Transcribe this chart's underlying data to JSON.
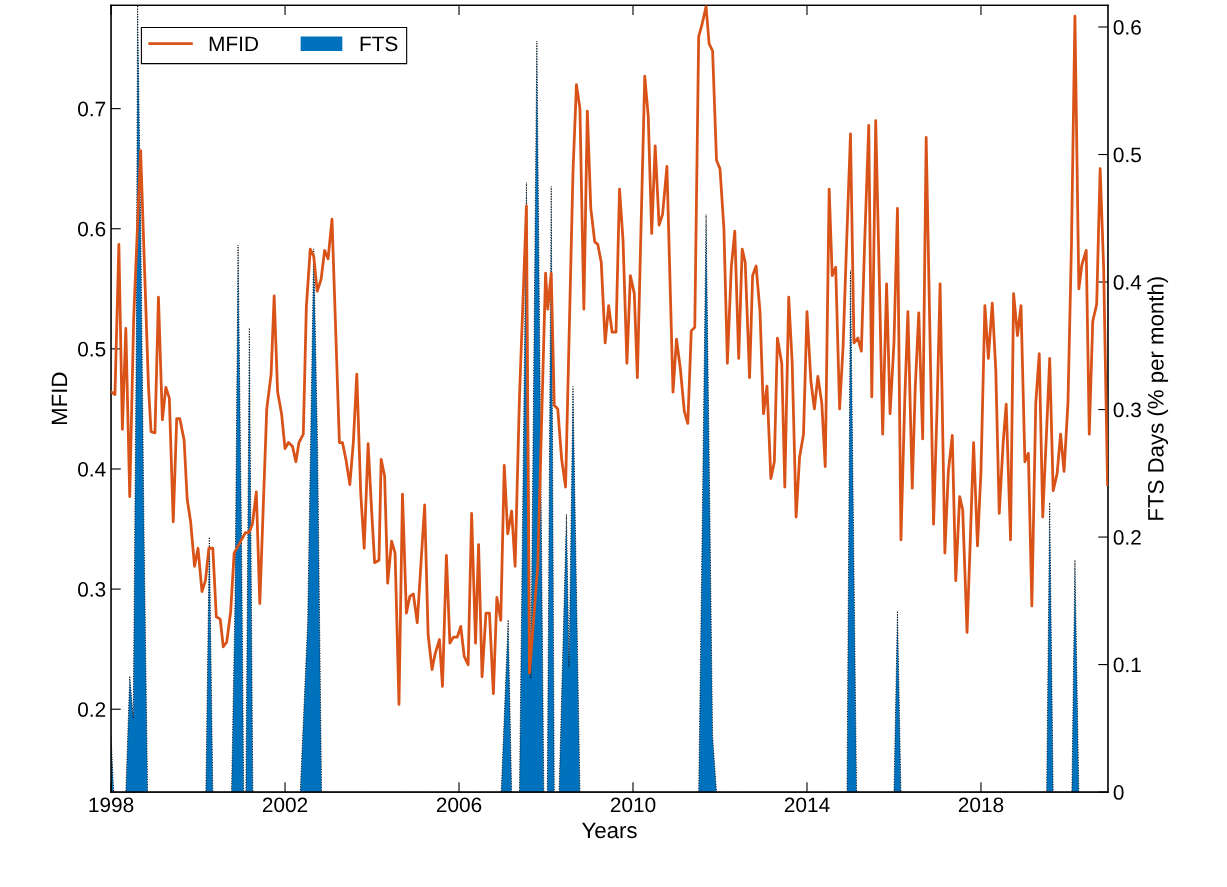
{
  "chart_data": {
    "type": "line",
    "xlabel": "Years",
    "ylabel": "MFID",
    "y2label": "FTS Days (% per month)",
    "xlim": [
      1998,
      2020.92
    ],
    "xticks": [
      1998,
      2002,
      2006,
      2010,
      2014,
      2018
    ],
    "ylim": [
      0.131,
      0.786
    ],
    "yticks": [
      0.2,
      0.3,
      0.4,
      0.5,
      0.6,
      0.7
    ],
    "y2lim": [
      0,
      0.617
    ],
    "y2ticks": [
      0,
      0.1,
      0.2,
      0.3,
      0.4,
      0.5,
      0.6
    ],
    "legend": "top left",
    "grid": false,
    "series": [
      {
        "name": "MFID",
        "axis": "y",
        "color": "#d95319",
        "x": [
          1998.01,
          1998.09,
          1998.18,
          1998.26,
          1998.34,
          1998.43,
          1998.52,
          1998.68,
          1998.86,
          1998.92,
          1999.01,
          1999.09,
          1999.18,
          1999.26,
          1999.34,
          1999.43,
          1999.51,
          1999.58,
          1999.68,
          1999.75,
          1999.83,
          1999.92,
          2000.0,
          2000.09,
          2000.17,
          2000.25,
          2000.34,
          2000.42,
          2000.51,
          2000.58,
          2000.66,
          2000.75,
          2000.83,
          2001.09,
          2001.17,
          2001.25,
          2001.34,
          2001.42,
          2001.58,
          2001.68,
          2001.75,
          2001.83,
          2001.92,
          2002.0,
          2002.08,
          2002.17,
          2002.25,
          2002.32,
          2002.42,
          2002.49,
          2002.58,
          2002.66,
          2002.74,
          2002.83,
          2002.91,
          2002.99,
          2003.08,
          2003.25,
          2003.32,
          2003.4,
          2003.49,
          2003.57,
          2003.65,
          2003.74,
          2003.82,
          2003.91,
          2003.99,
          2004.06,
          2004.16,
          2004.21,
          2004.29,
          2004.36,
          2004.45,
          2004.53,
          2004.62,
          2004.7,
          2004.79,
          2004.87,
          2004.95,
          2005.04,
          2005.21,
          2005.29,
          2005.38,
          2005.45,
          2005.55,
          2005.62,
          2005.71,
          2005.79,
          2005.87,
          2005.96,
          2006.04,
          2006.12,
          2006.21,
          2006.29,
          2006.38,
          2006.45,
          2006.53,
          2006.62,
          2006.7,
          2006.79,
          2006.87,
          2006.96,
          2007.04,
          2007.12,
          2007.21,
          2007.29,
          2007.39,
          2007.55,
          2007.62,
          2007.81,
          2007.99,
          2008.04,
          2008.12,
          2008.19,
          2008.27,
          2008.36,
          2008.45,
          2008.62,
          2008.7,
          2008.78,
          2008.87,
          2008.95,
          2009.03,
          2009.12,
          2009.19,
          2009.27,
          2009.36,
          2009.44,
          2009.52,
          2009.61,
          2009.69,
          2009.77,
          2009.86,
          2009.94,
          2010.03,
          2010.1,
          2010.27,
          2010.35,
          2010.43,
          2010.51,
          2010.6,
          2010.68,
          2010.78,
          2010.92,
          2011.0,
          2011.09,
          2011.18,
          2011.26,
          2011.34,
          2011.42,
          2011.51,
          2011.58,
          2011.68,
          2011.75,
          2011.83,
          2011.92,
          2012.0,
          2012.09,
          2012.17,
          2012.26,
          2012.34,
          2012.43,
          2012.51,
          2012.58,
          2012.68,
          2012.75,
          2012.83,
          2012.92,
          2013.0,
          2013.08,
          2013.17,
          2013.25,
          2013.32,
          2013.42,
          2013.49,
          2013.58,
          2013.66,
          2013.75,
          2013.83,
          2013.92,
          2014.0,
          2014.09,
          2014.17,
          2014.25,
          2014.34,
          2014.42,
          2014.51,
          2014.58,
          2014.66,
          2014.75,
          2014.83,
          2014.91,
          2015.0,
          2015.08,
          2015.17,
          2015.25,
          2015.32,
          2015.42,
          2015.49,
          2015.58,
          2015.66,
          2015.74,
          2015.83,
          2015.91,
          2016.0,
          2016.08,
          2016.16,
          2016.25,
          2016.32,
          2016.42,
          2016.49,
          2016.57,
          2016.66,
          2016.74,
          2016.91,
          2016.99,
          2017.06,
          2017.17,
          2017.25,
          2017.34,
          2017.42,
          2017.51,
          2017.58,
          2017.68,
          2017.75,
          2017.83,
          2017.92,
          2018.0,
          2018.09,
          2018.17,
          2018.26,
          2018.34,
          2018.42,
          2018.51,
          2018.58,
          2018.68,
          2018.75,
          2018.84,
          2018.92,
          2019.01,
          2019.09,
          2019.17,
          2019.26,
          2019.34,
          2019.42,
          2019.51,
          2019.58,
          2019.66,
          2019.75,
          2019.83,
          2019.91,
          2020.0,
          2020.08,
          2020.16,
          2020.25,
          2020.32,
          2020.42,
          2020.49,
          2020.57,
          2020.66,
          2020.74,
          2020.82,
          2020.91
        ],
        "values": [
          0.464,
          0.462,
          0.587,
          0.433,
          0.517,
          0.377,
          0.525,
          0.665,
          0.469,
          0.431,
          0.43,
          0.543,
          0.441,
          0.468,
          0.459,
          0.356,
          0.442,
          0.442,
          0.424,
          0.375,
          0.356,
          0.319,
          0.334,
          0.298,
          0.307,
          0.334,
          0.334,
          0.277,
          0.275,
          0.252,
          0.256,
          0.281,
          0.33,
          0.347,
          0.347,
          0.354,
          0.381,
          0.288,
          0.45,
          0.479,
          0.544,
          0.464,
          0.446,
          0.417,
          0.422,
          0.419,
          0.406,
          0.422,
          0.429,
          0.535,
          0.583,
          0.577,
          0.548,
          0.558,
          0.582,
          0.575,
          0.608,
          0.422,
          0.422,
          0.408,
          0.387,
          0.422,
          0.479,
          0.38,
          0.334,
          0.421,
          0.366,
          0.322,
          0.324,
          0.408,
          0.394,
          0.305,
          0.34,
          0.33,
          0.204,
          0.379,
          0.28,
          0.294,
          0.296,
          0.272,
          0.37,
          0.262,
          0.233,
          0.246,
          0.258,
          0.219,
          0.328,
          0.255,
          0.26,
          0.26,
          0.269,
          0.244,
          0.237,
          0.363,
          0.255,
          0.337,
          0.227,
          0.28,
          0.28,
          0.213,
          0.293,
          0.274,
          0.403,
          0.346,
          0.365,
          0.319,
          0.46,
          0.619,
          0.23,
          0.319,
          0.563,
          0.533,
          0.563,
          0.453,
          0.45,
          0.408,
          0.385,
          0.647,
          0.72,
          0.7,
          0.533,
          0.698,
          0.617,
          0.589,
          0.587,
          0.572,
          0.505,
          0.536,
          0.514,
          0.514,
          0.633,
          0.591,
          0.488,
          0.561,
          0.546,
          0.476,
          0.727,
          0.694,
          0.596,
          0.669,
          0.603,
          0.612,
          0.652,
          0.464,
          0.508,
          0.483,
          0.448,
          0.438,
          0.515,
          0.518,
          0.76,
          0.769,
          0.785,
          0.754,
          0.748,
          0.657,
          0.65,
          0.6,
          0.488,
          0.568,
          0.598,
          0.492,
          0.583,
          0.572,
          0.476,
          0.561,
          0.569,
          0.531,
          0.446,
          0.469,
          0.392,
          0.406,
          0.509,
          0.488,
          0.385,
          0.543,
          0.488,
          0.36,
          0.41,
          0.429,
          0.531,
          0.473,
          0.45,
          0.477,
          0.455,
          0.402,
          0.633,
          0.561,
          0.568,
          0.45,
          0.502,
          0.587,
          0.679,
          0.505,
          0.509,
          0.498,
          0.582,
          0.686,
          0.46,
          0.69,
          0.563,
          0.429,
          0.554,
          0.446,
          0.505,
          0.617,
          0.341,
          0.46,
          0.531,
          0.384,
          0.469,
          0.53,
          0.425,
          0.676,
          0.354,
          0.45,
          0.554,
          0.33,
          0.398,
          0.428,
          0.307,
          0.377,
          0.366,
          0.264,
          0.336,
          0.422,
          0.336,
          0.398,
          0.536,
          0.492,
          0.538,
          0.483,
          0.363,
          0.422,
          0.454,
          0.341,
          0.546,
          0.511,
          0.536,
          0.406,
          0.413,
          0.286,
          0.455,
          0.496,
          0.36,
          0.433,
          0.492,
          0.382,
          0.396,
          0.429,
          0.398,
          0.455,
          0.586,
          0.777,
          0.55,
          0.57,
          0.582,
          0.429,
          0.523,
          0.537,
          0.65,
          0.568,
          0.387
        ]
      },
      {
        "name": "FTS",
        "type": "area",
        "axis": "y2",
        "color": "#0072bd",
        "line_style": "dotted",
        "x": [
          1998.0,
          1998.06,
          1998.34,
          1998.43,
          1998.51,
          1998.58,
          1998.61,
          1998.68,
          1998.76,
          1998.84,
          2000.18,
          2000.26,
          2000.34,
          2000.77,
          2000.85,
          2000.92,
          2001.0,
          2001.05,
          2001.1,
          2001.18,
          2001.26,
          2002.35,
          2002.52,
          2002.66,
          2002.75,
          2002.84,
          2006.97,
          2007.13,
          2007.21,
          2007.39,
          2007.55,
          2007.65,
          2007.79,
          2007.95,
          2008.03,
          2008.12,
          2008.19,
          2008.3,
          2008.47,
          2008.53,
          2008.62,
          2008.78,
          2011.51,
          2011.58,
          2011.68,
          2011.75,
          2011.83,
          2011.92,
          2014.92,
          2015.0,
          2015.14,
          2016.0,
          2016.08,
          2016.16,
          2019.51,
          2019.58,
          2019.66,
          2020.09,
          2020.16,
          2020.25
        ],
        "values": [
          0.044,
          0,
          0,
          0.091,
          0.058,
          0.35,
          0.617,
          0.45,
          0.2,
          0,
          0,
          0.2,
          0,
          0,
          0.15,
          0.429,
          0.2,
          0,
          0,
          0.364,
          0,
          0,
          0.133,
          0.426,
          0.267,
          0,
          0,
          0.135,
          0,
          0,
          0.478,
          0.089,
          0.589,
          0,
          0,
          0.475,
          0,
          0,
          0.218,
          0.098,
          0.318,
          0,
          0,
          0.178,
          0.453,
          0.267,
          0.044,
          0,
          0,
          0.409,
          0,
          0,
          0.142,
          0,
          0,
          0.227,
          0,
          0,
          0.182,
          0
        ]
      }
    ]
  }
}
